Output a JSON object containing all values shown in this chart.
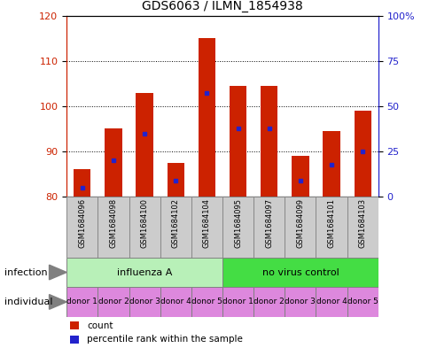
{
  "title": "GDS6063 / ILMN_1854938",
  "samples": [
    "GSM1684096",
    "GSM1684098",
    "GSM1684100",
    "GSM1684102",
    "GSM1684104",
    "GSM1684095",
    "GSM1684097",
    "GSM1684099",
    "GSM1684101",
    "GSM1684103"
  ],
  "count_values": [
    86,
    95,
    103,
    87.5,
    115,
    104.5,
    104.5,
    89,
    94.5,
    99
  ],
  "percentile_values": [
    82,
    88,
    94,
    83.5,
    103,
    95,
    95,
    83.5,
    87,
    90
  ],
  "ymin": 80,
  "ymax": 120,
  "yticks_left": [
    80,
    90,
    100,
    110,
    120
  ],
  "right_tick_positions": [
    80,
    90,
    100,
    110,
    120
  ],
  "right_tick_labels": [
    "0",
    "25",
    "50",
    "75",
    "100%"
  ],
  "grid_ticks": [
    90,
    100,
    110
  ],
  "infection_groups": [
    {
      "label": "influenza A",
      "start": 0,
      "end": 5,
      "color": "#b8f0b8"
    },
    {
      "label": "no virus control",
      "start": 5,
      "end": 10,
      "color": "#44dd44"
    }
  ],
  "individual_labels": [
    "donor 1",
    "donor 2",
    "donor 3",
    "donor 4",
    "donor 5",
    "donor 1",
    "donor 2",
    "donor 3",
    "donor 4",
    "donor 5"
  ],
  "individual_color": "#dd88dd",
  "sample_bg_color": "#cccccc",
  "sample_border_color": "#888888",
  "bar_color": "#cc2200",
  "percentile_color": "#2222cc",
  "bar_width": 0.55,
  "infection_label": "infection",
  "individual_label": "individual",
  "legend_count_label": "count",
  "legend_percentile_label": "percentile rank within the sample",
  "background_color": "#ffffff",
  "left_axis_color": "#cc2200",
  "right_axis_color": "#2222cc",
  "title_fontsize": 10,
  "axis_fontsize": 8,
  "sample_fontsize": 6,
  "label_fontsize": 8,
  "individual_fontsize": 6.5
}
